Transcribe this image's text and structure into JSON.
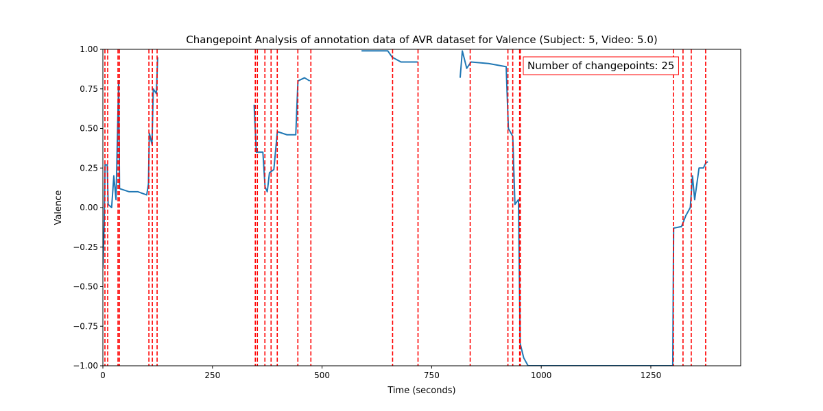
{
  "chart_data": {
    "type": "line",
    "title": "Changepoint Analysis of annotation data of AVR dataset for Valence (Subject: 5, Video: 5.0)",
    "x_label": "Time (seconds)",
    "y_label": "Valence",
    "annotation": "Number of changepoints: 25",
    "annotation_color": "#ff0000",
    "xlim": [
      0,
      1455
    ],
    "ylim": [
      -1,
      1
    ],
    "xticks": [
      0,
      250,
      500,
      750,
      1000,
      1250
    ],
    "yticks": [
      {
        "value": -1,
        "label": "−1.00"
      },
      {
        "value": -0.75,
        "label": "−0.75"
      },
      {
        "value": -0.5,
        "label": "−0.50"
      },
      {
        "value": -0.25,
        "label": "−0.25"
      },
      {
        "value": 0,
        "label": "0.00"
      },
      {
        "value": 0.25,
        "label": "0.25"
      },
      {
        "value": 0.5,
        "label": "0.50"
      },
      {
        "value": 0.75,
        "label": "0.75"
      },
      {
        "value": 1,
        "label": "1.00"
      }
    ],
    "x": [
      0,
      3,
      5,
      10,
      12,
      20,
      25,
      30,
      36,
      38,
      60,
      80,
      100,
      104,
      106,
      112,
      115,
      122,
      125,
      128,
      345,
      350,
      365,
      370,
      375,
      380,
      390,
      398,
      420,
      440,
      445,
      460,
      472,
      476,
      590,
      650,
      660,
      680,
      718,
      722,
      815,
      820,
      830,
      840,
      880,
      920,
      925,
      935,
      940,
      948,
      952,
      960,
      970,
      1300,
      1302,
      1320,
      1330,
      1340,
      1345,
      1350,
      1360,
      1370,
      1375,
      1380
    ],
    "series": [
      {
        "name": "Valence",
        "color": "#1f77b4",
        "values": [
          -0.38,
          -0.1,
          0.27,
          0.27,
          0.02,
          0.0,
          0.2,
          0.05,
          0.8,
          0.12,
          0.1,
          0.1,
          0.08,
          0.15,
          0.47,
          0.4,
          0.75,
          0.72,
          0.95,
          null,
          0.65,
          0.35,
          0.35,
          0.13,
          0.1,
          0.22,
          0.24,
          0.48,
          0.46,
          0.46,
          0.8,
          0.82,
          0.8,
          null,
          0.99,
          0.99,
          0.95,
          0.92,
          0.92,
          null,
          0.82,
          0.99,
          0.88,
          0.92,
          0.91,
          0.89,
          0.5,
          0.45,
          0.02,
          0.05,
          -0.86,
          -0.95,
          -1.0,
          -1.0,
          -0.13,
          -0.12,
          -0.05,
          0.0,
          0.2,
          0.05,
          0.25,
          0.25,
          0.28,
          0.29
        ]
      }
    ],
    "changepoints": {
      "color": "#ff0000",
      "x": [
        4.7,
        11,
        34.5,
        37.6,
        105,
        112.8,
        123.7,
        347.7,
        352.4,
        369.6,
        383.7,
        397.8,
        444.8,
        474.5,
        660.9,
        718.9,
        837.9,
        924,
        935,
        950.7,
        952.3,
        1301.5,
        1323.4,
        1342.2,
        1375.1
      ]
    }
  }
}
